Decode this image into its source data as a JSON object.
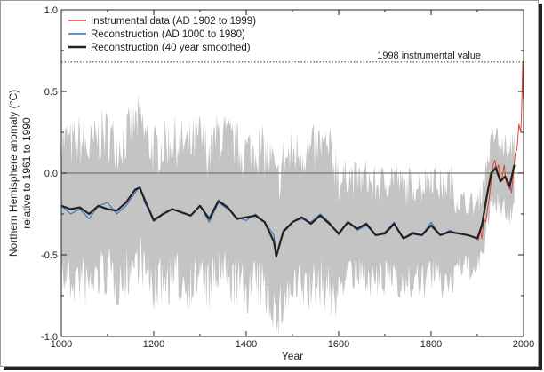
{
  "chart_data": {
    "type": "line",
    "title": "",
    "xlabel": "Year",
    "ylabel_line1": "Northern Hemisphere anomaly (°C)",
    "ylabel_line2": "relative to 1961 to 1990",
    "xlim": [
      1000,
      2000
    ],
    "ylim": [
      -1.0,
      1.0
    ],
    "x_ticks": [
      "1000",
      "1200",
      "1400",
      "1600",
      "1800",
      "2000"
    ],
    "y_ticks": [
      "-1.0",
      "-0.5",
      "0.0",
      "0.5",
      "1.0"
    ],
    "legend_position": "top-left",
    "reference_line": {
      "label": "1998 instrumental value",
      "value": 0.68
    },
    "zero_line": 0.0,
    "colors": {
      "instrumental": "#e8402a",
      "reconstruction": "#2f6fc4",
      "smoothed": "#222222",
      "uncertainty": "#c4c4c4"
    },
    "series": [
      {
        "name": "Instrumental data (AD 1902 to 1999)",
        "x": [
          1902,
          1906,
          1910,
          1914,
          1918,
          1922,
          1926,
          1930,
          1934,
          1938,
          1942,
          1946,
          1950,
          1954,
          1958,
          1962,
          1966,
          1970,
          1974,
          1978,
          1982,
          1986,
          1990,
          1994,
          1996,
          1998,
          1999
        ],
        "y": [
          -0.42,
          -0.35,
          -0.4,
          -0.28,
          -0.3,
          -0.22,
          -0.15,
          -0.05,
          0.05,
          0.08,
          0.02,
          0.05,
          -0.05,
          -0.02,
          0.05,
          -0.05,
          -0.08,
          -0.05,
          -0.12,
          0.0,
          0.12,
          0.15,
          0.3,
          0.25,
          0.4,
          0.68,
          0.45
        ]
      },
      {
        "name": "Reconstruction (AD 1000 to 1980)",
        "x": [
          1000,
          1020,
          1040,
          1060,
          1080,
          1100,
          1120,
          1140,
          1160,
          1170,
          1180,
          1200,
          1220,
          1240,
          1260,
          1280,
          1300,
          1320,
          1340,
          1360,
          1380,
          1400,
          1420,
          1440,
          1460,
          1465,
          1480,
          1500,
          1520,
          1540,
          1560,
          1580,
          1600,
          1620,
          1640,
          1660,
          1680,
          1700,
          1720,
          1740,
          1760,
          1780,
          1800,
          1820,
          1840,
          1860,
          1880,
          1900,
          1910,
          1920,
          1930,
          1940,
          1950,
          1960,
          1970,
          1980
        ],
        "y": [
          -0.2,
          -0.25,
          -0.22,
          -0.28,
          -0.2,
          -0.18,
          -0.25,
          -0.2,
          -0.12,
          -0.08,
          -0.18,
          -0.28,
          -0.25,
          -0.22,
          -0.24,
          -0.26,
          -0.2,
          -0.3,
          -0.18,
          -0.22,
          -0.27,
          -0.29,
          -0.25,
          -0.3,
          -0.38,
          -0.52,
          -0.35,
          -0.3,
          -0.28,
          -0.3,
          -0.25,
          -0.3,
          -0.38,
          -0.3,
          -0.35,
          -0.32,
          -0.38,
          -0.36,
          -0.3,
          -0.4,
          -0.36,
          -0.38,
          -0.3,
          -0.38,
          -0.35,
          -0.37,
          -0.38,
          -0.4,
          -0.3,
          -0.15,
          -0.02,
          0.05,
          -0.05,
          -0.02,
          -0.1,
          0.05
        ]
      },
      {
        "name": "Reconstruction (40 year smoothed)",
        "x": [
          1000,
          1020,
          1040,
          1060,
          1080,
          1100,
          1120,
          1140,
          1160,
          1170,
          1180,
          1200,
          1220,
          1240,
          1260,
          1280,
          1300,
          1320,
          1340,
          1360,
          1380,
          1400,
          1420,
          1440,
          1460,
          1465,
          1480,
          1500,
          1520,
          1540,
          1560,
          1580,
          1600,
          1620,
          1640,
          1660,
          1680,
          1700,
          1720,
          1740,
          1760,
          1780,
          1800,
          1820,
          1840,
          1860,
          1880,
          1900,
          1910,
          1920,
          1930,
          1940,
          1950,
          1960,
          1970,
          1980
        ],
        "y": [
          -0.2,
          -0.22,
          -0.21,
          -0.25,
          -0.2,
          -0.22,
          -0.23,
          -0.18,
          -0.1,
          -0.09,
          -0.16,
          -0.29,
          -0.25,
          -0.22,
          -0.24,
          -0.26,
          -0.2,
          -0.28,
          -0.17,
          -0.21,
          -0.28,
          -0.27,
          -0.26,
          -0.3,
          -0.42,
          -0.51,
          -0.36,
          -0.3,
          -0.27,
          -0.31,
          -0.26,
          -0.31,
          -0.37,
          -0.3,
          -0.34,
          -0.31,
          -0.38,
          -0.37,
          -0.31,
          -0.4,
          -0.37,
          -0.38,
          -0.32,
          -0.38,
          -0.36,
          -0.37,
          -0.38,
          -0.4,
          -0.32,
          -0.15,
          0.0,
          0.03,
          -0.05,
          -0.02,
          -0.08,
          0.05
        ]
      }
    ]
  }
}
